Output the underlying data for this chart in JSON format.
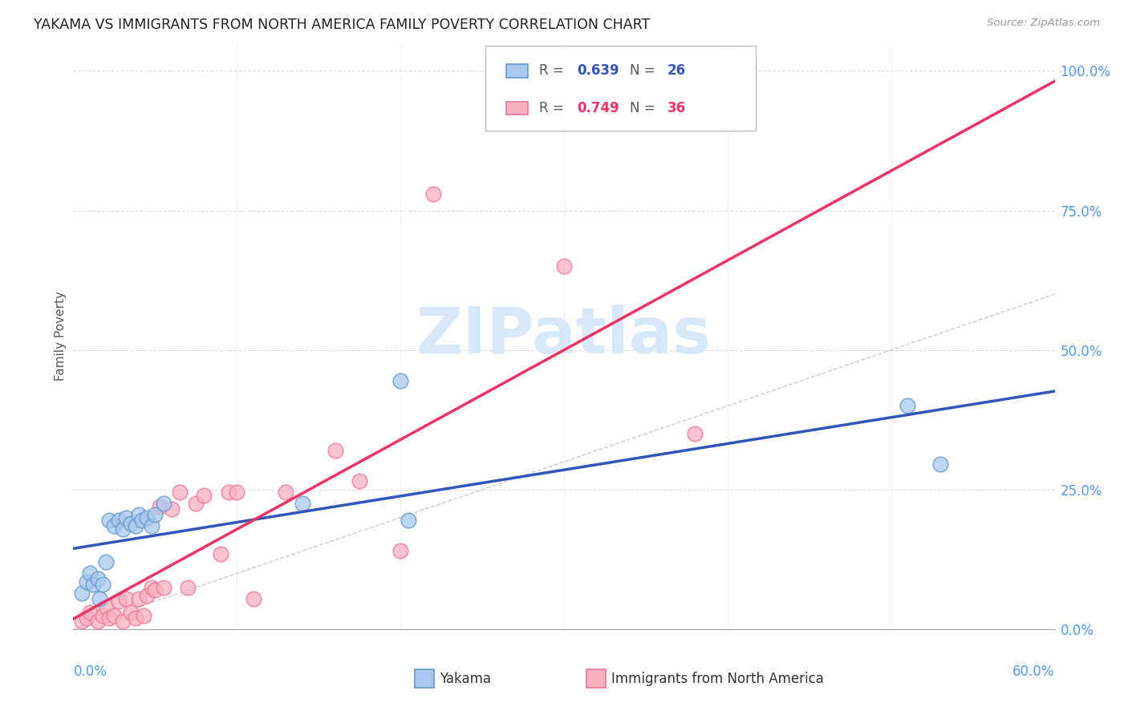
{
  "title": "YAKAMA VS IMMIGRANTS FROM NORTH AMERICA FAMILY POVERTY CORRELATION CHART",
  "source": "Source: ZipAtlas.com",
  "ylabel": "Family Poverty",
  "blue_color": "#A8C8F0",
  "blue_edge": "#6699CC",
  "pink_color": "#F8B0C0",
  "pink_edge": "#EE7799",
  "blue_line": "#3355BB",
  "pink_line": "#EE3366",
  "diag_color": "#CCCCCC",
  "grid_color": "#DDDDDD",
  "right_tick_color": "#5599EE",
  "x_tick_color": "#5599EE",
  "watermark_color": "#D8E8F8",
  "yakama_x": [
    0.005,
    0.008,
    0.01,
    0.012,
    0.015,
    0.016,
    0.018,
    0.02,
    0.022,
    0.025,
    0.028,
    0.03,
    0.032,
    0.035,
    0.038,
    0.04,
    0.042,
    0.045,
    0.048,
    0.05,
    0.055,
    0.14,
    0.2,
    0.205,
    0.51,
    0.53
  ],
  "yakama_y": [
    0.065,
    0.085,
    0.1,
    0.08,
    0.09,
    0.055,
    0.08,
    0.12,
    0.195,
    0.185,
    0.195,
    0.18,
    0.2,
    0.19,
    0.185,
    0.205,
    0.195,
    0.2,
    0.185,
    0.205,
    0.225,
    0.225,
    0.445,
    0.195,
    0.4,
    0.295
  ],
  "immig_x": [
    0.005,
    0.008,
    0.01,
    0.015,
    0.018,
    0.02,
    0.022,
    0.025,
    0.028,
    0.03,
    0.032,
    0.035,
    0.038,
    0.04,
    0.043,
    0.045,
    0.048,
    0.05,
    0.053,
    0.055,
    0.06,
    0.065,
    0.07,
    0.075,
    0.08,
    0.09,
    0.095,
    0.1,
    0.11,
    0.13,
    0.16,
    0.175,
    0.2,
    0.22,
    0.3,
    0.38
  ],
  "immig_y": [
    0.015,
    0.02,
    0.03,
    0.015,
    0.025,
    0.04,
    0.02,
    0.025,
    0.05,
    0.015,
    0.055,
    0.03,
    0.02,
    0.055,
    0.025,
    0.06,
    0.075,
    0.07,
    0.22,
    0.075,
    0.215,
    0.245,
    0.075,
    0.225,
    0.24,
    0.135,
    0.245,
    0.245,
    0.055,
    0.245,
    0.32,
    0.265,
    0.14,
    0.78,
    0.65,
    0.35
  ],
  "xmin": 0.0,
  "xmax": 0.6,
  "ymin": 0.0,
  "ymax": 1.05,
  "ytick_vals": [
    0.0,
    0.25,
    0.5,
    0.75,
    1.0
  ],
  "ytick_labels": [
    "0.0%",
    "25.0%",
    "50.0%",
    "75.0%",
    "100.0%"
  ]
}
